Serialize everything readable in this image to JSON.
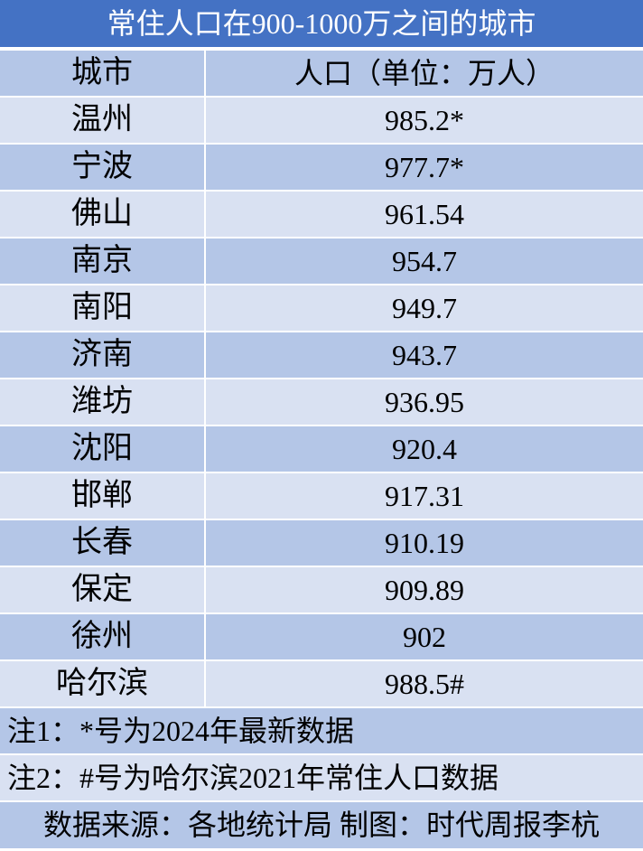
{
  "title": "常住人口在900-1000万之间的城市",
  "header": {
    "city": "城市",
    "population": "人口（单位：万人）"
  },
  "rows": [
    {
      "city": "温州",
      "population": "985.2*"
    },
    {
      "city": "宁波",
      "population": "977.7*"
    },
    {
      "city": "佛山",
      "population": "961.54"
    },
    {
      "city": "南京",
      "population": "954.7"
    },
    {
      "city": "南阳",
      "population": "949.7"
    },
    {
      "city": "济南",
      "population": "943.7"
    },
    {
      "city": "潍坊",
      "population": "936.95"
    },
    {
      "city": "沈阳",
      "population": "920.4"
    },
    {
      "city": "邯郸",
      "population": "917.31"
    },
    {
      "city": "长春",
      "population": "910.19"
    },
    {
      "city": "保定",
      "population": "909.89"
    },
    {
      "city": "徐州",
      "population": "902"
    },
    {
      "city": "哈尔滨",
      "population": "988.5#"
    }
  ],
  "notes": {
    "note1": "注1：*号为2024年最新数据",
    "note2": "注2：#号为哈尔滨2021年常住人口数据",
    "source": "数据来源：各地统计局 制图：时代周报李杭"
  },
  "colors": {
    "title_bg": "#4472c4",
    "row_dark": "#b4c6e7",
    "row_light": "#d9e1f2"
  },
  "chart_data": {
    "type": "table",
    "title": "常住人口在900-1000万之间的城市",
    "columns": [
      "城市",
      "人口（单位：万人）"
    ],
    "categories": [
      "温州",
      "宁波",
      "佛山",
      "南京",
      "南阳",
      "济南",
      "潍坊",
      "沈阳",
      "邯郸",
      "长春",
      "保定",
      "徐州",
      "哈尔滨"
    ],
    "values": [
      985.2,
      977.7,
      961.54,
      954.7,
      949.7,
      943.7,
      936.95,
      920.4,
      917.31,
      910.19,
      909.89,
      902,
      988.5
    ]
  }
}
